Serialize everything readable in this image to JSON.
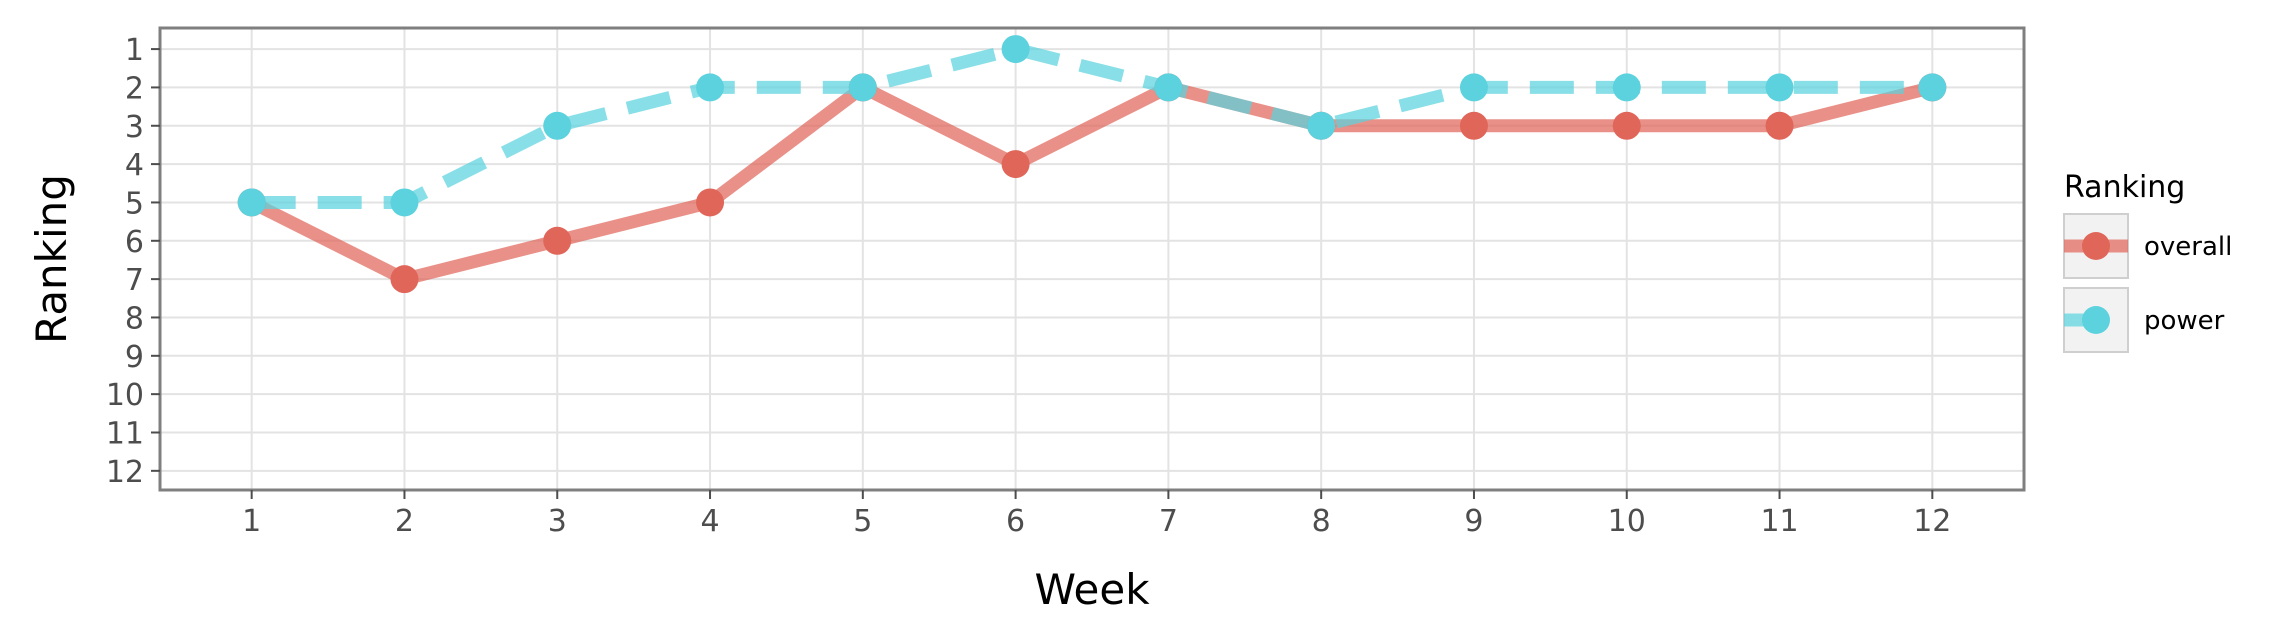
{
  "chart_data": {
    "type": "line",
    "title": "",
    "xlabel": "Week",
    "ylabel": "Ranking",
    "x": [
      1,
      2,
      3,
      4,
      5,
      6,
      7,
      8,
      9,
      10,
      11,
      12
    ],
    "xlim": [
      0.4,
      12.6
    ],
    "ylim": [
      12.5,
      0.45
    ],
    "y_reversed": true,
    "xticks": [
      "1",
      "2",
      "3",
      "4",
      "5",
      "6",
      "7",
      "8",
      "9",
      "10",
      "11",
      "12"
    ],
    "yticks": [
      "1",
      "2",
      "3",
      "4",
      "5",
      "6",
      "7",
      "8",
      "9",
      "10",
      "11",
      "12"
    ],
    "grid": true,
    "legend": {
      "title": "Ranking",
      "position": "right"
    },
    "series": [
      {
        "name": "overall",
        "values": [
          5,
          7,
          6,
          5,
          2,
          4,
          2,
          3,
          3,
          3,
          3,
          2
        ],
        "color": "#E0665A",
        "line_style": "solid"
      },
      {
        "name": "power",
        "values": [
          5,
          5,
          3,
          2,
          2,
          1,
          2,
          3,
          2,
          2,
          2,
          2
        ],
        "color": "#5BD2DE",
        "line_style": "dashed"
      }
    ]
  }
}
